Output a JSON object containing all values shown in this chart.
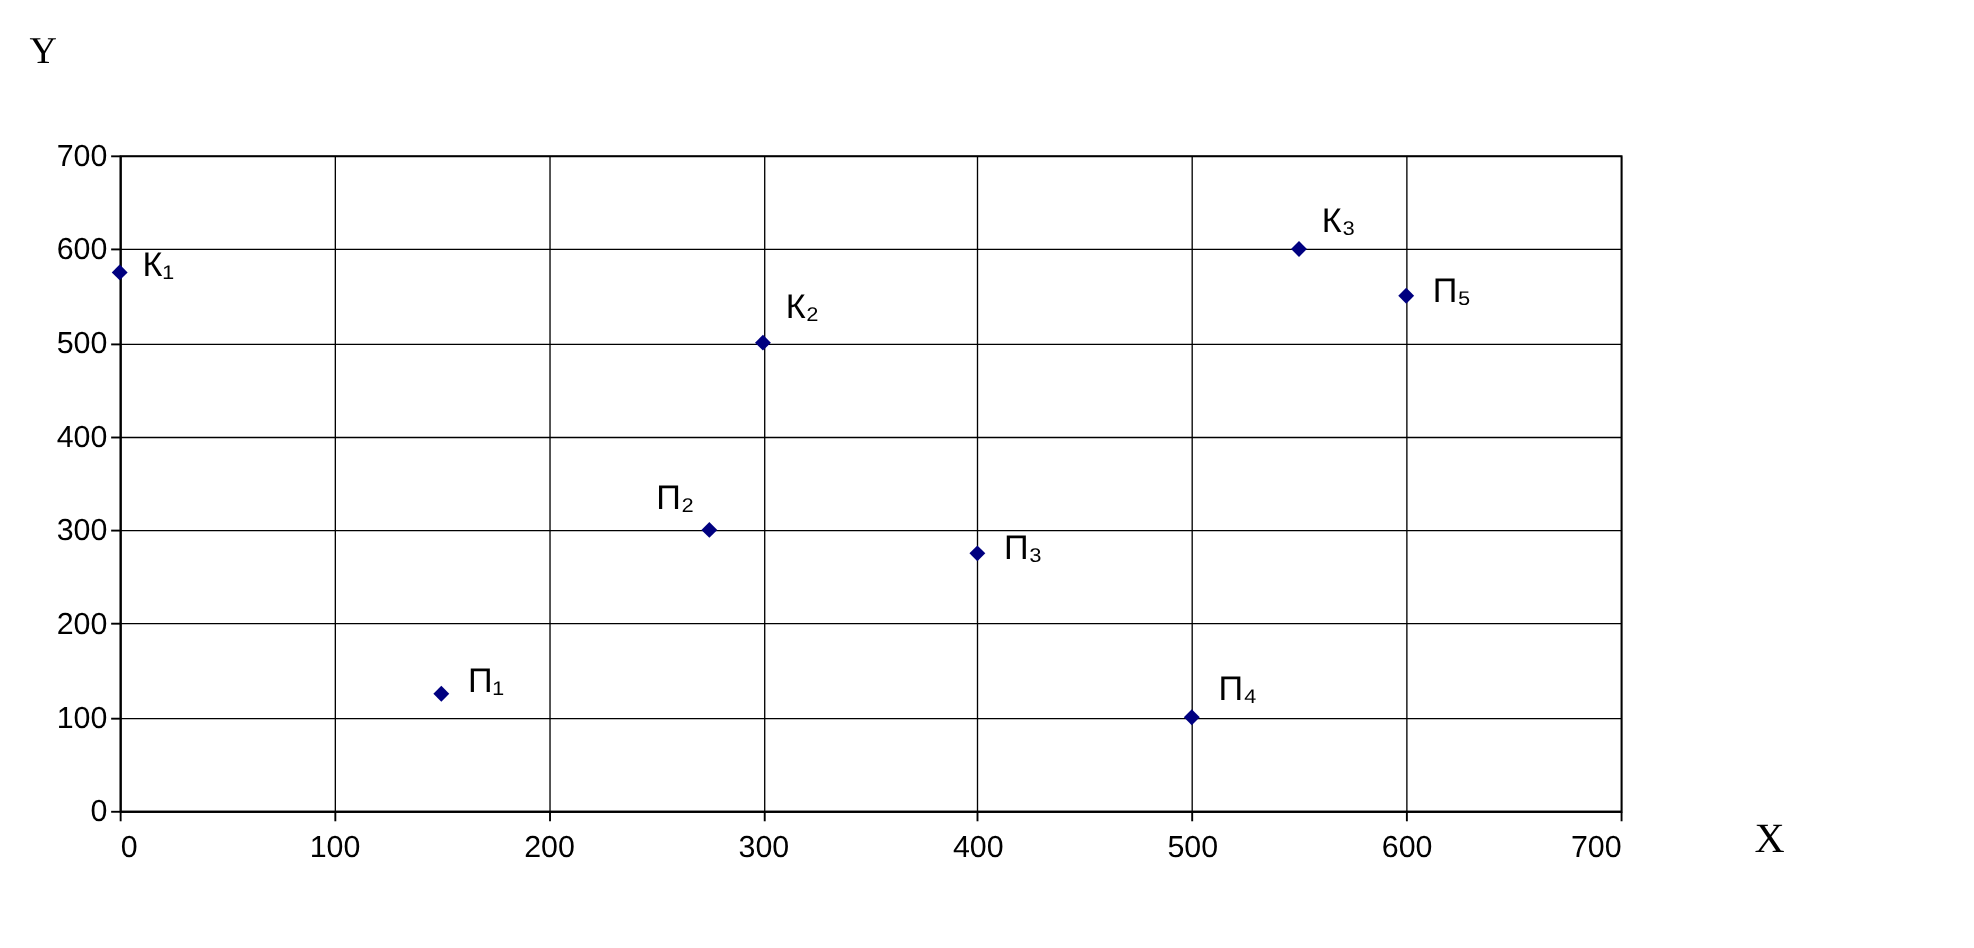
{
  "chart_data": {
    "type": "scatter",
    "xlabel": "X",
    "ylabel": "Y",
    "x": [
      0,
      150,
      275,
      300,
      400,
      500,
      550,
      600
    ],
    "series": [
      {
        "color": "#000080",
        "values": [
          575,
          125,
          300,
          500,
          275,
          100,
          600,
          550
        ]
      }
    ],
    "xlim": [
      0,
      700
    ],
    "xticks": [
      0,
      100,
      200,
      300,
      400,
      500,
      600,
      700
    ],
    "ylim": [
      0,
      700
    ],
    "yticks": [
      0,
      100,
      200,
      300,
      400,
      500,
      600,
      700
    ],
    "grid": true,
    "marker": "diamond",
    "annotations": [
      {
        "text": "К₁",
        "x": 0,
        "y": 575
      },
      {
        "text": "П₁",
        "x": 150,
        "y": 125
      },
      {
        "text": "П₂",
        "x": 275,
        "y": 300
      },
      {
        "text": "К₂",
        "x": 300,
        "y": 500
      },
      {
        "text": "П₃",
        "x": 400,
        "y": 275
      },
      {
        "text": "П₄",
        "x": 500,
        "y": 100
      },
      {
        "text": "К₃",
        "x": 550,
        "y": 600
      },
      {
        "text": "П₅",
        "x": 600,
        "y": 550
      }
    ]
  }
}
